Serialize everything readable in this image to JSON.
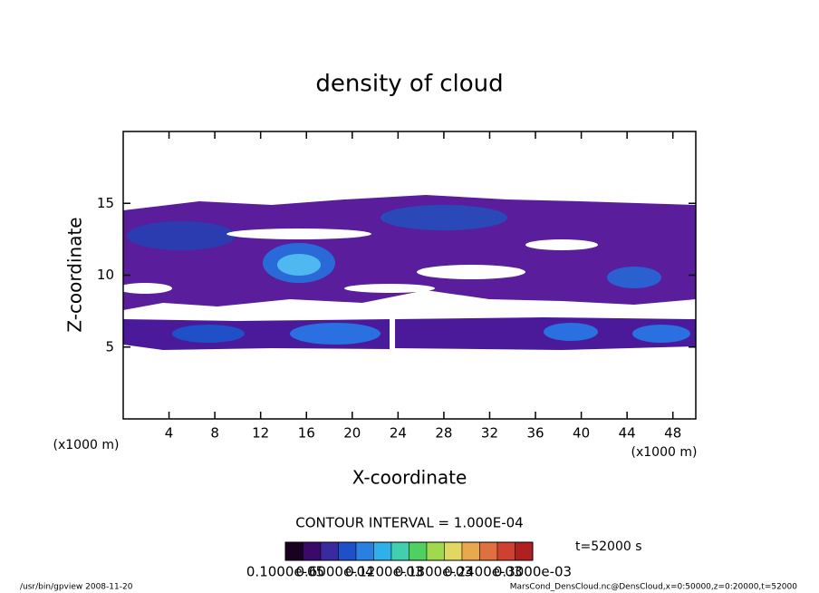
{
  "chart_data": {
    "type": "contour",
    "title": "density of cloud",
    "xlabel": "X-coordinate",
    "ylabel": "Z-coordinate",
    "x_unit": "(x1000 m)",
    "xlim": [
      0,
      50
    ],
    "xticks": [
      4,
      8,
      12,
      16,
      20,
      24,
      28,
      32,
      36,
      40,
      44,
      48
    ],
    "ylim": [
      0,
      20
    ],
    "yticks": [
      5,
      10,
      15
    ],
    "contour_interval": "CONTOUR INTERVAL = 1.000E-04",
    "time_label": "t=52000 s",
    "colorbar": {
      "colors": [
        "#1a0020",
        "#3a0a6a",
        "#3a2aa0",
        "#2050c8",
        "#2a80e0",
        "#30b0e8",
        "#40d0b0",
        "#50d060",
        "#a0d850",
        "#e0d860",
        "#e8a850",
        "#e07040",
        "#d04030",
        "#b02020"
      ],
      "labels": [
        "0.1000e-05",
        "0.6000e-04",
        "0.1200e-03",
        "0.1800e-03",
        "0.2400e-03",
        "0.3000e-03"
      ]
    },
    "footer_left": "/usr/bin/gpview   2008-11-20",
    "footer_right": "MarsCond_DensCloud.nc@DensCloud,x=0:50000,z=0:20000,t=52000"
  }
}
